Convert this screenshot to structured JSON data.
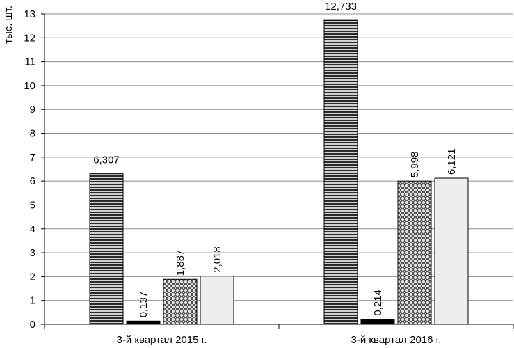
{
  "chart_data": {
    "type": "bar",
    "title": "",
    "xlabel": "",
    "ylabel": "тыс. шт.",
    "ylim": [
      0,
      13
    ],
    "yticks": [
      "0",
      "1",
      "2",
      "3",
      "4",
      "5",
      "6",
      "7",
      "8",
      "9",
      "10",
      "11",
      "12",
      "13"
    ],
    "grid": true,
    "legend": "none",
    "categories": [
      "3-й квартал 2015 г.",
      "3-й квартал 2016 г."
    ],
    "series": [
      {
        "name": "series-1",
        "pattern": "horizontal-stripes",
        "values": [
          6.307,
          12.733
        ],
        "labels": [
          "6,307",
          "12,733"
        ],
        "label_rotated": false
      },
      {
        "name": "series-2",
        "pattern": "solid-black",
        "values": [
          0.137,
          0.214
        ],
        "labels": [
          "0,137",
          "0,214"
        ],
        "label_rotated": true
      },
      {
        "name": "series-3",
        "pattern": "dots",
        "values": [
          1.887,
          5.998
        ],
        "labels": [
          "1,887",
          "5,998"
        ],
        "label_rotated": true
      },
      {
        "name": "series-4",
        "pattern": "light-fill",
        "values": [
          2.018,
          6.121
        ],
        "labels": [
          "2,018",
          "6,121"
        ],
        "label_rotated": true
      }
    ]
  }
}
